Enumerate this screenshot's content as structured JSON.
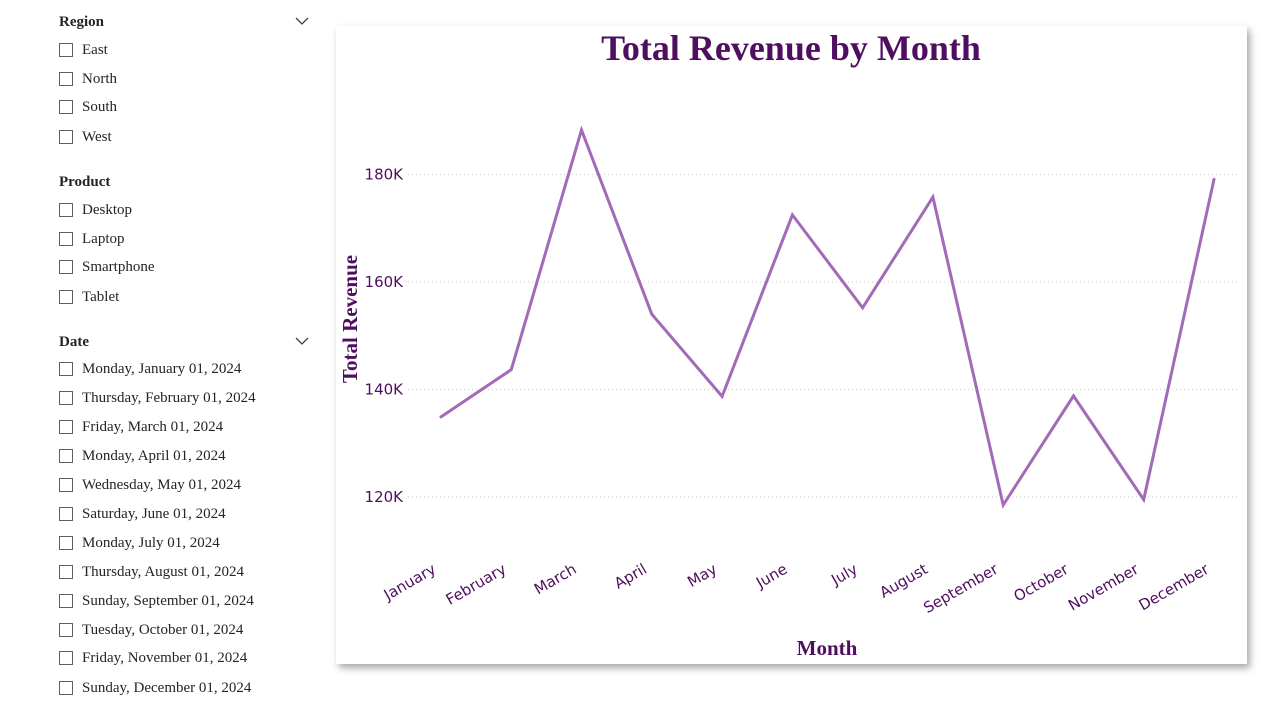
{
  "filters": {
    "region": {
      "title": "Region",
      "options": [
        "East",
        "North",
        "South",
        "West"
      ]
    },
    "product": {
      "title": "Product",
      "options": [
        "Desktop",
        "Laptop",
        "Smartphone",
        "Tablet"
      ]
    },
    "date": {
      "title": "Date",
      "options": [
        "Monday, January 01, 2024",
        "Thursday, February 01, 2024",
        "Friday, March 01, 2024",
        "Monday, April 01, 2024",
        "Wednesday, May 01, 2024",
        "Saturday, June 01, 2024",
        "Monday, July 01, 2024",
        "Thursday, August 01, 2024",
        "Sunday, September 01, 2024",
        "Tuesday, October 01, 2024",
        "Friday, November 01, 2024",
        "Sunday, December 01, 2024"
      ]
    }
  },
  "colors": {
    "title": "#4f0e5f",
    "line": "#a36ab7",
    "grid": "#c8c8c8"
  },
  "chart_data": {
    "type": "line",
    "title": "Total Revenue by Month",
    "xlabel": "Month",
    "ylabel": "Total Revenue",
    "categories": [
      "January",
      "February",
      "March",
      "April",
      "May",
      "June",
      "July",
      "August",
      "September",
      "October",
      "November",
      "December"
    ],
    "series": [
      {
        "values": [
          134900,
          143700,
          188300,
          154000,
          138700,
          172500,
          155200,
          175800,
          118500,
          138800,
          119500,
          179100
        ]
      }
    ],
    "ylim": [
      107700,
      197600
    ],
    "yticks": [
      120000,
      140000,
      160000,
      180000
    ],
    "ytick_labels": [
      "120K",
      "140K",
      "160K",
      "180K"
    ],
    "grid": "horizontal dotted",
    "legend": "none"
  }
}
